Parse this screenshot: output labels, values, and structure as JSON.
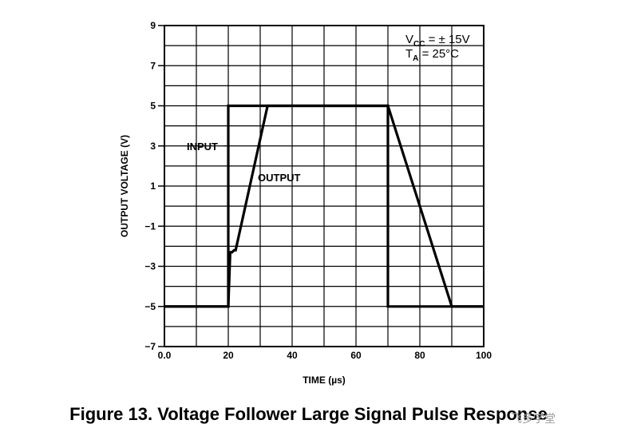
{
  "chart_data": {
    "type": "line",
    "title": "",
    "xlabel": "TIME (µs)",
    "ylabel": "OUTPUT VOLTAGE (V)",
    "xlim": [
      0,
      100
    ],
    "ylim": [
      -7,
      9
    ],
    "x_ticks": [
      0,
      20,
      40,
      60,
      80,
      100
    ],
    "x_tick_labels": [
      "0.0",
      "20",
      "40",
      "60",
      "80",
      "100"
    ],
    "y_ticks": [
      9,
      7,
      5,
      3,
      1,
      -1,
      -3,
      -5,
      -7
    ],
    "y_tick_labels": [
      "9",
      "7",
      "5",
      "3",
      "1",
      "−1",
      "−3",
      "−5",
      "−7"
    ],
    "grid": true,
    "conditions": [
      "Vₑₑ = ± 15V",
      "Tₐ = 25°C"
    ],
    "conditions_parts": {
      "line1": {
        "main": "V",
        "sub": "CC",
        "rest": " = ± 15V"
      },
      "line2": {
        "main": "T",
        "sub": "A",
        "rest": " = 25°C"
      }
    },
    "series": [
      {
        "name": "INPUT",
        "x": [
          0,
          20,
          20,
          70,
          70,
          100
        ],
        "y": [
          -5,
          -5,
          5,
          5,
          -5,
          -5
        ]
      },
      {
        "name": "OUTPUT",
        "x": [
          0,
          20,
          20.6,
          21.2,
          21.8,
          22.3,
          32.3,
          70,
          90,
          100
        ],
        "y": [
          -5,
          -5,
          -2.3,
          -2.3,
          -2.2,
          -2.2,
          5,
          5,
          -5,
          -5
        ]
      }
    ]
  },
  "caption": "Figure 13. Voltage Follower Large Signal Pulse Response",
  "watermark": "飞多学堂"
}
